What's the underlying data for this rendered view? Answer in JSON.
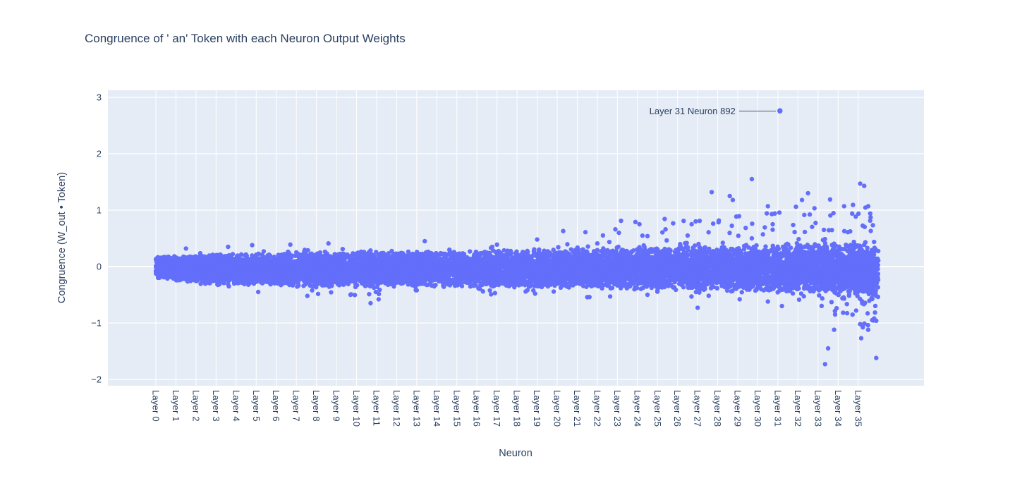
{
  "chart_data": {
    "type": "scatter",
    "title": "Congruence of ' an' Token with each Neuron Output Weights",
    "xlabel": "Neuron",
    "ylabel": "Congruence (W_out • Token)",
    "ylim": [
      -2.1,
      3.12
    ],
    "yticks": [
      3,
      2,
      1,
      0,
      -1,
      -2
    ],
    "xtick_labels": [
      "Layer 0",
      "Layer 1",
      "Layer 2",
      "Layer 3",
      "Layer 4",
      "Layer 5",
      "Layer 6",
      "Layer 7",
      "Layer 8",
      "Layer 9",
      "Layer 10",
      "Layer 11",
      "Layer 12",
      "Layer 13",
      "Layer 14",
      "Layer 15",
      "Layer 16",
      "Layer 17",
      "Layer 18",
      "Layer 19",
      "Layer 20",
      "Layer 21",
      "Layer 22",
      "Layer 23",
      "Layer 24",
      "Layer 25",
      "Layer 26",
      "Layer 27",
      "Layer 28",
      "Layer 29",
      "Layer 30",
      "Layer 31",
      "Layer 32",
      "Layer 33",
      "Layer 34",
      "Layer 35"
    ],
    "legend": "none",
    "grid": true,
    "plot_bg": "#e5ecf6",
    "grid_color": "#ffffff",
    "text_color": "#2a3f5f",
    "marker_color": "#636efa",
    "annotation": {
      "text": "Layer 31 Neuron 892",
      "layer": 31.1,
      "value": 2.76
    },
    "seed": 7,
    "points_per_layer": 300,
    "band": {
      "top": [
        0.14,
        0.16,
        0.17,
        0.18,
        0.18,
        0.19,
        0.19,
        0.2,
        0.2,
        0.2,
        0.21,
        0.21,
        0.21,
        0.22,
        0.22,
        0.22,
        0.23,
        0.23,
        0.23,
        0.24,
        0.24,
        0.24,
        0.25,
        0.25,
        0.26,
        0.26,
        0.27,
        0.27,
        0.28,
        0.28,
        0.29,
        0.29,
        0.3,
        0.3,
        0.31,
        0.32
      ],
      "bottom": [
        -0.18,
        -0.22,
        -0.25,
        -0.26,
        -0.26,
        -0.27,
        -0.28,
        -0.3,
        -0.3,
        -0.3,
        -0.3,
        -0.31,
        -0.29,
        -0.29,
        -0.29,
        -0.29,
        -0.3,
        -0.3,
        -0.3,
        -0.3,
        -0.3,
        -0.31,
        -0.31,
        -0.32,
        -0.32,
        -0.33,
        -0.33,
        -0.34,
        -0.34,
        -0.35,
        -0.36,
        -0.36,
        -0.37,
        -0.38,
        -0.4,
        -0.42
      ]
    },
    "upper_extra": {
      "20": [
        2,
        0.7
      ],
      "21": [
        2,
        0.75
      ],
      "22": [
        3,
        0.8
      ],
      "23": [
        4,
        0.85
      ],
      "24": [
        4,
        0.85
      ],
      "25": [
        5,
        0.9
      ],
      "26": [
        5,
        0.9
      ],
      "27": [
        6,
        0.95
      ],
      "28": [
        7,
        1.0
      ],
      "29": [
        7,
        1.0
      ],
      "30": [
        8,
        1.0
      ],
      "31": [
        8,
        1.0
      ],
      "32": [
        9,
        1.05
      ],
      "33": [
        9,
        1.05
      ],
      "34": [
        10,
        1.1
      ],
      "35": [
        11,
        1.1
      ]
    },
    "lower_extra": {
      "7": [
        2,
        -0.5
      ],
      "8": [
        2,
        -0.5
      ],
      "9": [
        2,
        -0.52
      ],
      "10": [
        3,
        -0.55
      ],
      "11": [
        3,
        -0.58
      ],
      "12": [
        2,
        -0.5
      ],
      "13": [
        2,
        -0.5
      ],
      "16": [
        3,
        -0.5
      ],
      "17": [
        2,
        -0.5
      ],
      "18": [
        3,
        -0.52
      ],
      "19": [
        2,
        -0.5
      ],
      "20": [
        2,
        -0.52
      ],
      "21": [
        2,
        -0.55
      ],
      "22": [
        3,
        -0.55
      ],
      "23": [
        3,
        -0.55
      ],
      "24": [
        3,
        -0.55
      ],
      "25": [
        3,
        -0.58
      ],
      "26": [
        3,
        -0.6
      ],
      "27": [
        3,
        -0.65
      ],
      "28": [
        3,
        -0.6
      ],
      "29": [
        3,
        -0.62
      ],
      "30": [
        4,
        -0.7
      ],
      "31": [
        4,
        -0.72
      ],
      "32": [
        5,
        -0.75
      ],
      "33": [
        8,
        -1.0
      ],
      "34": [
        12,
        -1.05
      ],
      "35": [
        34,
        -1.08
      ]
    },
    "outliers": [
      [
        1.5,
        0.32
      ],
      [
        3.6,
        0.35
      ],
      [
        4.8,
        0.38
      ],
      [
        6.7,
        0.39
      ],
      [
        8.6,
        0.41
      ],
      [
        5.1,
        -0.45
      ],
      [
        7.55,
        -0.52
      ],
      [
        9.7,
        -0.5
      ],
      [
        11.1,
        -0.58
      ],
      [
        10.7,
        -0.65
      ],
      [
        13.0,
        -0.42
      ],
      [
        16.3,
        -0.44
      ],
      [
        16.9,
        -0.47
      ],
      [
        18.9,
        -0.48
      ],
      [
        13.4,
        0.45
      ],
      [
        16.7,
        0.33
      ],
      [
        17.0,
        0.39
      ],
      [
        19.0,
        0.48
      ],
      [
        20.3,
        0.63
      ],
      [
        22.0,
        0.41
      ],
      [
        22.9,
        0.66
      ],
      [
        23.9,
        0.79
      ],
      [
        24.1,
        0.75
      ],
      [
        24.5,
        0.54
      ],
      [
        24.5,
        -0.5
      ],
      [
        25.4,
        0.66
      ],
      [
        26.3,
        0.81
      ],
      [
        26.5,
        0.55
      ],
      [
        26.7,
        0.75
      ],
      [
        26.9,
        0.8
      ],
      [
        27.1,
        0.81
      ],
      [
        27.0,
        -0.73
      ],
      [
        27.7,
        1.32
      ],
      [
        28.6,
        1.25
      ],
      [
        28.75,
        1.18
      ],
      [
        29.7,
        1.55
      ],
      [
        29.7,
        0.5
      ],
      [
        30.5,
        1.07
      ],
      [
        30.7,
        0.93
      ],
      [
        31.9,
        1.06
      ],
      [
        32.2,
        1.18
      ],
      [
        32.5,
        1.3
      ],
      [
        33.6,
        1.19
      ],
      [
        34.3,
        1.07
      ],
      [
        34.7,
        0.94
      ],
      [
        35.1,
        1.47
      ],
      [
        35.3,
        1.43
      ],
      [
        35.5,
        1.07
      ],
      [
        35.6,
        0.94
      ],
      [
        30.5,
        -0.62
      ],
      [
        31.2,
        -0.7
      ],
      [
        31.6,
        -0.43
      ],
      [
        33.35,
        -1.73
      ],
      [
        33.5,
        -1.45
      ],
      [
        33.8,
        -1.12
      ],
      [
        33.85,
        -0.85
      ],
      [
        34.9,
        -0.78
      ],
      [
        35.1,
        -1.02
      ],
      [
        35.15,
        -1.27
      ],
      [
        35.5,
        -1.12
      ],
      [
        35.7,
        -0.95
      ],
      [
        35.9,
        -1.62
      ],
      [
        35.9,
        -0.96
      ]
    ]
  }
}
